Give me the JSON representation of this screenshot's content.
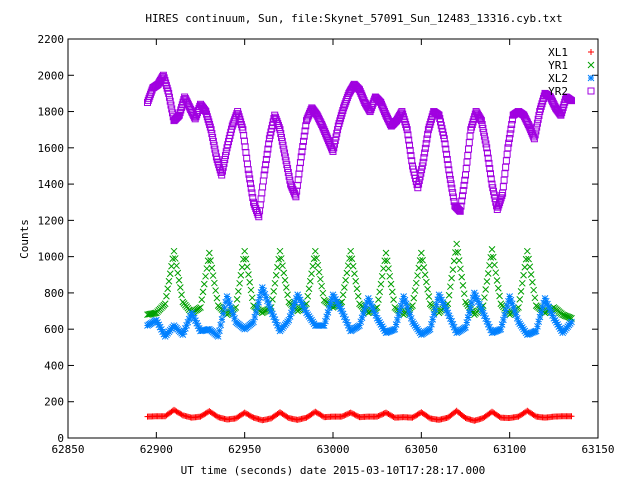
{
  "chart_data": {
    "type": "scatter",
    "title": "HIRES continuum, Sun, file:Skynet_57091_Sun_12483_13316.cyb.txt",
    "xlabel": "UT time (seconds) date 2015-03-10T17:28:17.000",
    "ylabel": "Counts",
    "xlim": [
      62850,
      63150
    ],
    "ylim": [
      0,
      2200
    ],
    "x_ticks": [
      62850,
      62900,
      62950,
      63000,
      63050,
      63100,
      63150
    ],
    "y_ticks": [
      0,
      200,
      400,
      600,
      800,
      1000,
      1200,
      1400,
      1600,
      1800,
      2000,
      2200
    ],
    "grid": false,
    "legend_position": "top-right",
    "x_range_data": [
      62895,
      63135
    ],
    "series": [
      {
        "name": "XL1",
        "marker": "+",
        "color": "#ff0000",
        "x": [
          62895,
          62900,
          62905,
          62910,
          62915,
          62920,
          62925,
          62930,
          62935,
          62940,
          62945,
          62950,
          62955,
          62960,
          62965,
          62970,
          62975,
          62980,
          62985,
          62990,
          62995,
          63000,
          63005,
          63010,
          63015,
          63020,
          63025,
          63030,
          63035,
          63040,
          63045,
          63050,
          63055,
          63060,
          63065,
          63070,
          63075,
          63080,
          63085,
          63090,
          63095,
          63100,
          63105,
          63110,
          63115,
          63120,
          63125,
          63130,
          63135
        ],
        "y": [
          118,
          120,
          120,
          155,
          125,
          112,
          118,
          148,
          115,
          102,
          108,
          140,
          112,
          98,
          108,
          142,
          110,
          100,
          112,
          145,
          115,
          118,
          118,
          140,
          115,
          118,
          118,
          140,
          112,
          115,
          112,
          142,
          108,
          100,
          112,
          150,
          110,
          95,
          110,
          145,
          112,
          110,
          118,
          150,
          118,
          112,
          118,
          120,
          120
        ]
      },
      {
        "name": "YR1",
        "marker": "x",
        "color": "#00a000",
        "x": [
          62895,
          62900,
          62905,
          62910,
          62915,
          62920,
          62925,
          62930,
          62935,
          62940,
          62945,
          62950,
          62955,
          62960,
          62965,
          62970,
          62975,
          62980,
          62985,
          62990,
          62995,
          63000,
          63005,
          63010,
          63015,
          63020,
          63025,
          63030,
          63035,
          63040,
          63045,
          63050,
          63055,
          63060,
          63065,
          63070,
          63075,
          63080,
          63085,
          63090,
          63095,
          63100,
          63105,
          63110,
          63115,
          63120,
          63125,
          63130,
          63135
        ],
        "y": [
          680,
          690,
          740,
          1030,
          750,
          690,
          720,
          1020,
          730,
          680,
          720,
          1030,
          730,
          690,
          720,
          1030,
          750,
          700,
          740,
          1030,
          760,
          720,
          750,
          1030,
          740,
          690,
          720,
          1020,
          720,
          680,
          730,
          1020,
          740,
          690,
          740,
          1070,
          750,
          680,
          730,
          1040,
          740,
          680,
          720,
          1030,
          730,
          690,
          720,
          680,
          660
        ]
      },
      {
        "name": "XL2",
        "marker": "*",
        "color": "#0080ff",
        "x": [
          62895,
          62900,
          62905,
          62910,
          62915,
          62920,
          62925,
          62930,
          62935,
          62940,
          62945,
          62950,
          62955,
          62960,
          62965,
          62970,
          62975,
          62980,
          62985,
          62990,
          62995,
          63000,
          63005,
          63010,
          63015,
          63020,
          63025,
          63030,
          63035,
          63040,
          63045,
          63050,
          63055,
          63060,
          63065,
          63070,
          63075,
          63080,
          63085,
          63090,
          63095,
          63100,
          63105,
          63110,
          63115,
          63120,
          63125,
          63130,
          63135
        ],
        "y": [
          620,
          650,
          560,
          620,
          570,
          690,
          590,
          600,
          560,
          780,
          640,
          600,
          640,
          830,
          700,
          590,
          650,
          790,
          690,
          620,
          620,
          790,
          700,
          590,
          620,
          770,
          660,
          580,
          600,
          780,
          640,
          570,
          600,
          790,
          690,
          580,
          610,
          800,
          690,
          580,
          600,
          780,
          640,
          570,
          590,
          770,
          660,
          580,
          640
        ]
      },
      {
        "name": "YR2",
        "marker": "square",
        "color": "#a000e0",
        "x": [
          62895,
          62898,
          62901,
          62904,
          62907,
          62910,
          62913,
          62916,
          62919,
          62922,
          62925,
          62928,
          62931,
          62934,
          62937,
          62940,
          62943,
          62946,
          62949,
          62952,
          62955,
          62958,
          62961,
          62964,
          62967,
          62970,
          62973,
          62976,
          62979,
          62982,
          62985,
          62988,
          62991,
          62994,
          62997,
          63000,
          63003,
          63006,
          63009,
          63012,
          63015,
          63018,
          63021,
          63024,
          63027,
          63030,
          63033,
          63036,
          63039,
          63042,
          63045,
          63048,
          63051,
          63054,
          63057,
          63060,
          63063,
          63066,
          63069,
          63072,
          63075,
          63078,
          63081,
          63084,
          63087,
          63090,
          63093,
          63096,
          63099,
          63102,
          63105,
          63108,
          63111,
          63114,
          63117,
          63120,
          63123,
          63126,
          63129,
          63132,
          63135
        ],
        "y": [
          1850,
          1930,
          1950,
          2000,
          1900,
          1750,
          1780,
          1880,
          1820,
          1760,
          1840,
          1800,
          1700,
          1550,
          1450,
          1600,
          1720,
          1800,
          1700,
          1480,
          1300,
          1220,
          1450,
          1650,
          1780,
          1700,
          1550,
          1400,
          1330,
          1550,
          1750,
          1820,
          1780,
          1720,
          1650,
          1580,
          1720,
          1820,
          1900,
          1950,
          1920,
          1850,
          1800,
          1880,
          1850,
          1780,
          1720,
          1750,
          1800,
          1700,
          1500,
          1380,
          1520,
          1700,
          1800,
          1780,
          1650,
          1450,
          1280,
          1250,
          1450,
          1700,
          1800,
          1750,
          1600,
          1400,
          1260,
          1350,
          1600,
          1780,
          1800,
          1780,
          1720,
          1650,
          1800,
          1900,
          1880,
          1820,
          1780,
          1880,
          1860
        ]
      }
    ]
  }
}
